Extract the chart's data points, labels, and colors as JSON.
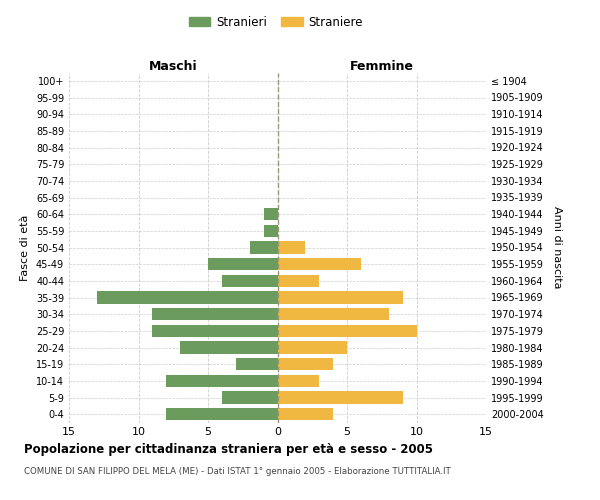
{
  "age_groups": [
    "0-4",
    "5-9",
    "10-14",
    "15-19",
    "20-24",
    "25-29",
    "30-34",
    "35-39",
    "40-44",
    "45-49",
    "50-54",
    "55-59",
    "60-64",
    "65-69",
    "70-74",
    "75-79",
    "80-84",
    "85-89",
    "90-94",
    "95-99",
    "100+"
  ],
  "birth_years": [
    "2000-2004",
    "1995-1999",
    "1990-1994",
    "1985-1989",
    "1980-1984",
    "1975-1979",
    "1970-1974",
    "1965-1969",
    "1960-1964",
    "1955-1959",
    "1950-1954",
    "1945-1949",
    "1940-1944",
    "1935-1939",
    "1930-1934",
    "1925-1929",
    "1920-1924",
    "1915-1919",
    "1910-1914",
    "1905-1909",
    "≤ 1904"
  ],
  "males": [
    8,
    4,
    8,
    3,
    7,
    9,
    9,
    13,
    4,
    5,
    2,
    1,
    1,
    0,
    0,
    0,
    0,
    0,
    0,
    0,
    0
  ],
  "females": [
    4,
    9,
    3,
    4,
    5,
    10,
    8,
    9,
    3,
    6,
    2,
    0,
    0,
    0,
    0,
    0,
    0,
    0,
    0,
    0,
    0
  ],
  "male_color": "#6b9c5e",
  "female_color": "#f0b840",
  "background_color": "#ffffff",
  "grid_color": "#cccccc",
  "title": "Popolazione per cittadinanza straniera per età e sesso - 2005",
  "subtitle": "COMUNE DI SAN FILIPPO DEL MELA (ME) - Dati ISTAT 1° gennaio 2005 - Elaborazione TUTTITALIA.IT",
  "xlabel_left": "Maschi",
  "xlabel_right": "Femmine",
  "ylabel_left": "Fasce di età",
  "ylabel_right": "Anni di nascita",
  "legend_male": "Stranieri",
  "legend_female": "Straniere",
  "xlim": 15
}
